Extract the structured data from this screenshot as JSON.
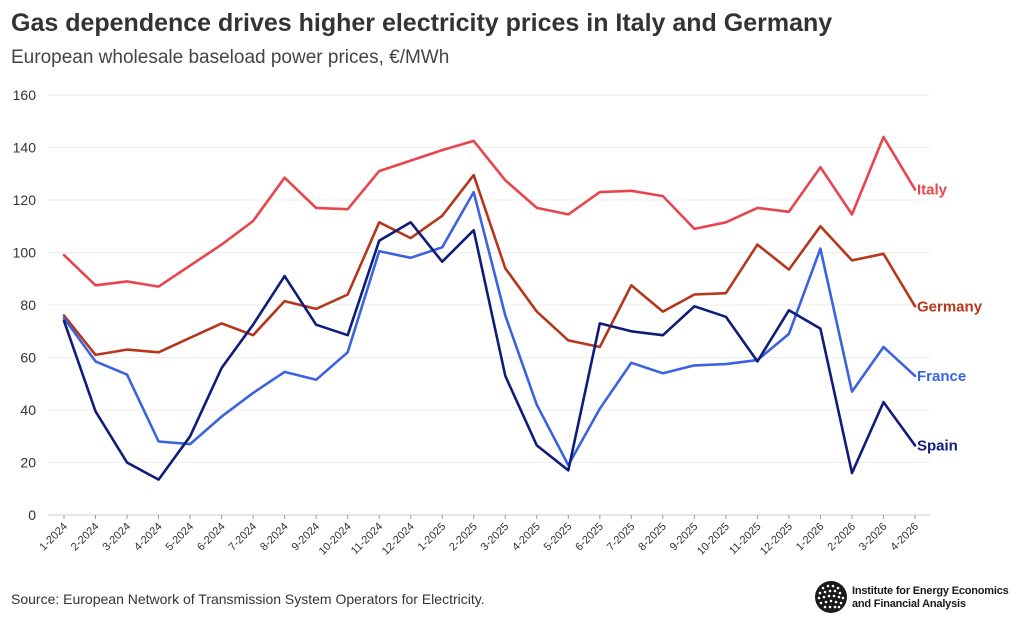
{
  "title": "Gas dependence drives higher electricity prices in Italy and Germany",
  "subtitle": "European wholesale baseload power prices, €/MWh",
  "source": "Source: European Network of Transmission System Operators for Electricity.",
  "logo": {
    "line1": "Institute for Energy Economics",
    "line2": "and Financial Analysis",
    "icon": "globe-icon"
  },
  "chart_data": {
    "type": "line",
    "title": "Gas dependence drives higher electricity prices in Italy and Germany",
    "subtitle": "European wholesale baseload power prices, €/MWh",
    "xlabel": "",
    "ylabel": "",
    "ylim": [
      0,
      160
    ],
    "yticks": [
      0,
      20,
      40,
      60,
      80,
      100,
      120,
      140,
      160
    ],
    "grid": true,
    "legend": "inline labels at right end of lines",
    "categories": [
      "1-2024",
      "2-2024",
      "3-2024",
      "4-2024",
      "5-2024",
      "6-2024",
      "7-2024",
      "8-2024",
      "9-2024",
      "10-2024",
      "11-2024",
      "12-2024",
      "1-2025",
      "2-2025",
      "3-2025",
      "4-2025",
      "5-2025",
      "6-2025",
      "7-2025",
      "8-2025",
      "9-2025",
      "10-2025",
      "11-2025",
      "12-2025",
      "1-2026",
      "2-2026",
      "3-2026",
      "4-2026"
    ],
    "series": [
      {
        "name": "Italy",
        "color": "#e8454c",
        "values": [
          99,
          87.5,
          89,
          87,
          95,
          103,
          112,
          128.5,
          117,
          116.5,
          131,
          135,
          139,
          142.5,
          127.5,
          117,
          114.5,
          123,
          123.5,
          121.5,
          109,
          111.5,
          117,
          115.5,
          132.5,
          114.5,
          144,
          124
        ]
      },
      {
        "name": "Germany",
        "color": "#b5371b",
        "values": [
          76,
          61,
          63,
          62,
          67.5,
          73,
          68.5,
          81.5,
          78.5,
          84,
          111.5,
          105.5,
          114,
          129.5,
          94,
          77.5,
          66.5,
          64,
          87.5,
          77.5,
          84,
          84.5,
          103,
          93.5,
          110,
          97,
          99.5,
          79.5
        ]
      },
      {
        "name": "France",
        "color": "#3b63e0",
        "values": [
          75,
          58.5,
          53.5,
          28,
          27,
          37.5,
          46.5,
          54.5,
          51.5,
          62,
          100.5,
          98,
          102,
          123,
          76,
          42,
          19,
          40.5,
          58,
          54,
          57,
          57.5,
          59,
          69,
          101.5,
          47,
          64,
          53
        ]
      },
      {
        "name": "Spain",
        "color": "#0f1c7a",
        "values": [
          74,
          39.5,
          20,
          13.5,
          30,
          56,
          72.5,
          91,
          72.5,
          68.5,
          104.5,
          111.5,
          96.5,
          108.5,
          53,
          26.5,
          17,
          73,
          70,
          68.5,
          79.5,
          75.5,
          58.5,
          78,
          71,
          16,
          43,
          26.5
        ]
      }
    ]
  }
}
